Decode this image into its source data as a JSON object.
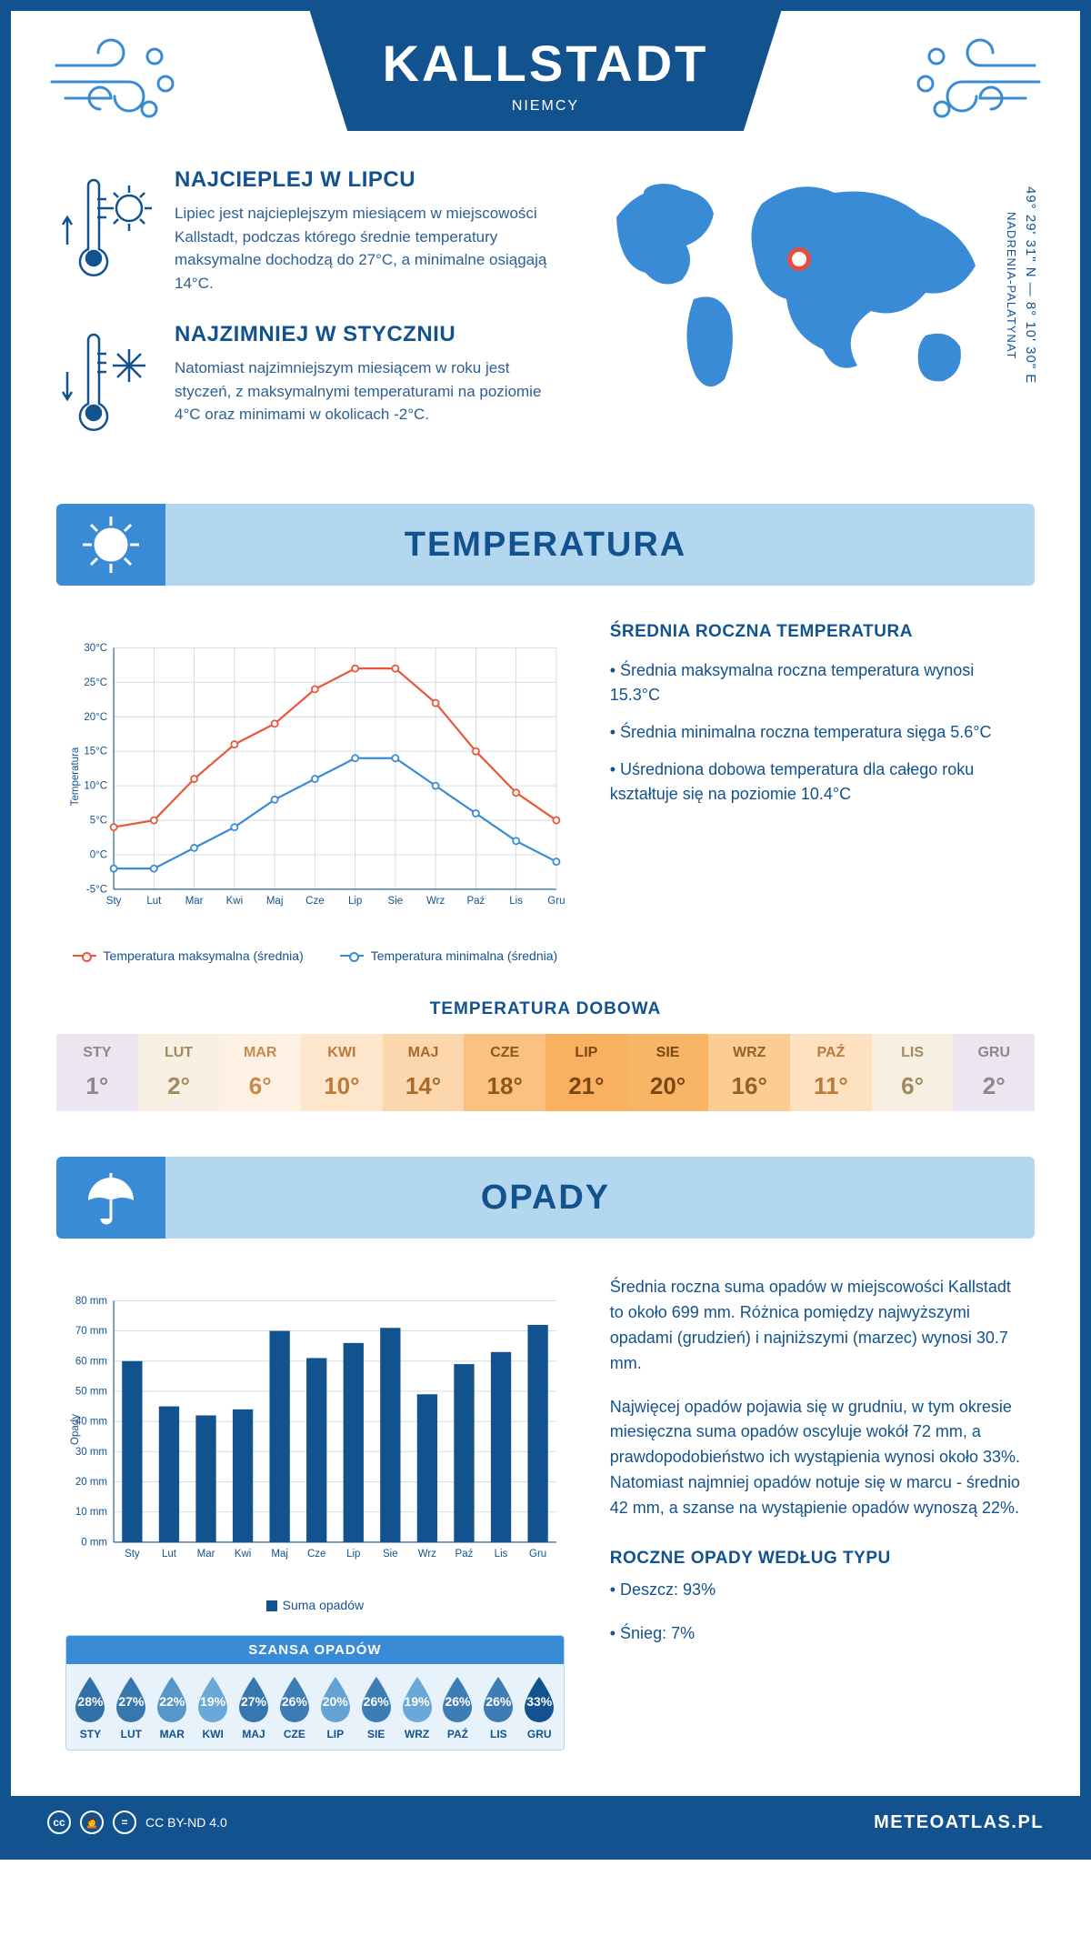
{
  "header": {
    "city": "KALLSTADT",
    "country": "NIEMCY"
  },
  "coords": {
    "line": "49° 29' 31\" N — 8° 10' 30\" E",
    "region": "NADRENIA-PALATYNAT"
  },
  "warmest": {
    "title": "NAJCIEPLEJ W LIPCU",
    "text": "Lipiec jest najcieplejszym miesiącem w miejscowości Kallstadt, podczas którego średnie temperatury maksymalne dochodzą do 27°C, a minimalne osiągają 14°C."
  },
  "coldest": {
    "title": "NAJZIMNIEJ W STYCZNIU",
    "text": "Natomiast najzimniejszym miesiącem w roku jest styczeń, z maksymalnymi temperaturami na poziomie 4°C oraz minimami w okolicach -2°C."
  },
  "months_short": [
    "Sty",
    "Lut",
    "Mar",
    "Kwi",
    "Maj",
    "Cze",
    "Lip",
    "Sie",
    "Wrz",
    "Paź",
    "Lis",
    "Gru"
  ],
  "months_upper": [
    "STY",
    "LUT",
    "MAR",
    "KWI",
    "MAJ",
    "CZE",
    "LIP",
    "SIE",
    "WRZ",
    "PAŹ",
    "LIS",
    "GRU"
  ],
  "temperature": {
    "section_title": "TEMPERATURA",
    "chart": {
      "type": "line",
      "y_label": "Temperatura",
      "y_min": -5,
      "y_max": 30,
      "y_step": 5,
      "y_unit": "°C",
      "series_max": {
        "color": "#e9573a",
        "values": [
          4,
          5,
          11,
          16,
          19,
          24,
          27,
          27,
          22,
          15,
          9,
          5
        ],
        "label": "Temperatura maksymalna (średnia)"
      },
      "series_min": {
        "color": "#3a8bd6",
        "values": [
          -2,
          -2,
          1,
          4,
          8,
          11,
          14,
          14,
          10,
          6,
          2,
          -1
        ],
        "label": "Temperatura minimalna (średnia)"
      },
      "grid_color": "#cfd8e0",
      "background_color": "#ffffff",
      "line_width": 2.5,
      "marker": "circle"
    },
    "annual": {
      "title": "ŚREDNIA ROCZNA TEMPERATURA",
      "bullet1": "• Średnia maksymalna roczna temperatura wynosi 15.3°C",
      "bullet2": "• Średnia minimalna roczna temperatura sięga 5.6°C",
      "bullet3": "• Uśredniona dobowa temperatura dla całego roku kształtuje się na poziomie 10.4°C"
    },
    "daily": {
      "title": "TEMPERATURA DOBOWA",
      "values": [
        "1°",
        "2°",
        "6°",
        "10°",
        "14°",
        "18°",
        "21°",
        "20°",
        "16°",
        "11°",
        "6°",
        "2°"
      ],
      "bg_colors": [
        "#ece6f0",
        "#f6efe2",
        "#fdf1e3",
        "#fde6cc",
        "#fcd7ad",
        "#fbc17f",
        "#f9b05f",
        "#f9b566",
        "#fbcd92",
        "#fde1c0",
        "#f6efe2",
        "#ece6f0"
      ],
      "text_colors": [
        "#8a8a8a",
        "#a28a60",
        "#c78a4a",
        "#b97a3a",
        "#a86a2c",
        "#8f561f",
        "#7a4716",
        "#7a4716",
        "#96602a",
        "#b97a3a",
        "#a28a60",
        "#8a8a8a"
      ]
    }
  },
  "precipitation": {
    "section_title": "OPADY",
    "chart": {
      "type": "bar",
      "y_label": "Opady",
      "y_min": 0,
      "y_max": 80,
      "y_step": 10,
      "y_unit": " mm",
      "values": [
        60,
        45,
        42,
        44,
        70,
        61,
        66,
        71,
        49,
        59,
        63,
        72
      ],
      "bar_color": "#12528e",
      "legend": "Suma opadów",
      "grid_color": "#cfd8e0",
      "bar_width": 0.55
    },
    "para1": "Średnia roczna suma opadów w miejscowości Kallstadt to około 699 mm. Różnica pomiędzy najwyższymi opadami (grudzień) i najniższymi (marzec) wynosi 30.7 mm.",
    "para2": "Najwięcej opadów pojawia się w grudniu, w tym okresie miesięczna suma opadów oscyluje wokół 72 mm, a prawdopodobieństwo ich wystąpienia wynosi około 33%. Natomiast najmniej opadów notuje się w marcu - średnio 42 mm, a szanse na wystąpienie opadów wynoszą 22%.",
    "chance": {
      "title": "SZANSA OPADÓW",
      "values": [
        28,
        27,
        22,
        19,
        27,
        26,
        20,
        26,
        19,
        26,
        26,
        33
      ],
      "min": 19,
      "max": 33,
      "color_light": "#6aa8d8",
      "color_dark": "#12528e"
    },
    "by_type": {
      "title": "ROCZNE OPADY WEDŁUG TYPU",
      "rain": "• Deszcz: 93%",
      "snow": "• Śnieg: 7%"
    }
  },
  "footer": {
    "license": "CC BY-ND 4.0",
    "site": "METEOATLAS.PL"
  }
}
